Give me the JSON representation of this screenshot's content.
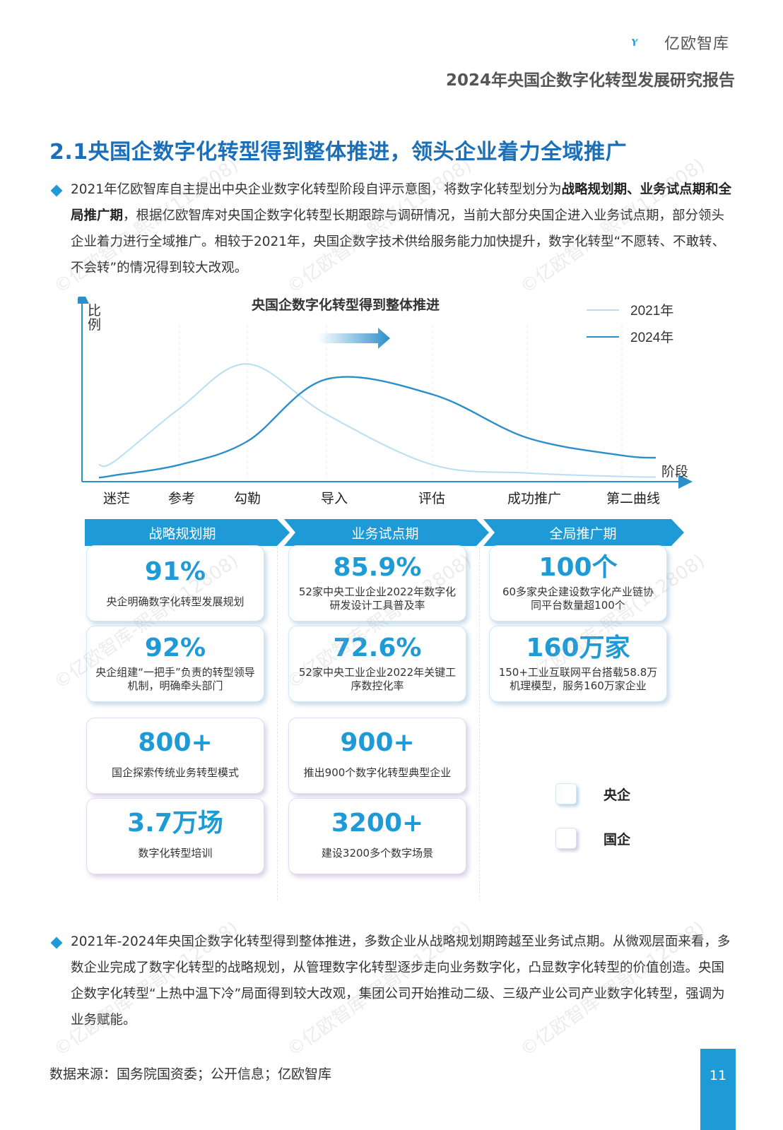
{
  "header": {
    "logo_text": "亿欧智库",
    "report_title": "2024年央国企数字化转型发展研究报告"
  },
  "section": {
    "title": "2.1央国企数字化转型得到整体推进，领头企业着力全域推广"
  },
  "intro": {
    "text_a": "2021年亿欧智库自主提出中央企业数字化转型阶段自评示意图，将数字化转型划分为",
    "bold": "战略规划期、业务试点期和全局推广期",
    "text_b": "，根据亿欧智库对央国企数字化转型长期跟踪与调研情况，当前大部分央国企进入业务试点期，部分领头企业着力进行全域推广。相较于2021年，央国企数字技术供给服务能力加快提升，数字化转型“不愿转、不敢转、不会转”的情况得到较大改观。"
  },
  "chart_data": {
    "type": "line",
    "title": "央国企数字化转型得到整体推进",
    "ylabel": "比例",
    "xlabel": "阶段",
    "categories": [
      "迷茫",
      "参考",
      "勾勒",
      "导入",
      "评估",
      "成功推广",
      "第二曲线"
    ],
    "series": [
      {
        "name": "2021年",
        "color": "#b7def2",
        "values": [
          0.15,
          0.6,
          0.98,
          0.55,
          0.12,
          0.05,
          0.02
        ]
      },
      {
        "name": "2024年",
        "color": "#2c8fc9",
        "values": [
          0.03,
          0.12,
          0.32,
          0.85,
          0.72,
          0.35,
          0.2
        ]
      }
    ],
    "legend": "top-right",
    "grid": false
  },
  "phases": [
    "战略规划期",
    "业务试点期",
    "全局推广期"
  ],
  "stats": {
    "s1": {
      "num": "91%",
      "desc": "央企明确数字化转型发展规划"
    },
    "s2": {
      "num": "92%",
      "desc": "央企组建“一把手”负责的转型领导机制，明确牵头部门"
    },
    "s3": {
      "num": "800+",
      "desc": "国企探索传统业务转型模式"
    },
    "s4": {
      "num": "3.7万场",
      "desc": "数字化转型培训"
    },
    "s5": {
      "num": "85.9%",
      "desc": "52家中央工业企业2022年数字化研发设计工具普及率"
    },
    "s6": {
      "num": "72.6%",
      "desc": "52家中央工业企业2022年关键工序数控化率"
    },
    "s7": {
      "num": "900+",
      "desc": "推出900个数字化转型典型企业"
    },
    "s8": {
      "num": "3200+",
      "desc": "建设3200多个数字场景"
    },
    "s9": {
      "num": "100个",
      "desc": "60多家央企建设数字化产业链协同平台数量超100个"
    },
    "s10": {
      "num": "160万家",
      "desc": "150+工业互联网平台搭载58.8万机理模型，服务160万家企业"
    }
  },
  "legend": {
    "soe": "央企",
    "state": "国企"
  },
  "conclusion": {
    "text": "2021年-2024年央国企数字化转型得到整体推进，多数企业从战略规划期跨越至业务试点期。从微观层面来看，多数企业完成了数字化转型的战略规划，从管理数字化转型逐步走向业务数字化，凸显数字化转型的价值创造。央国企数字化转型“上热中温下冷”局面得到较大改观，集团公司开始推动二级、三级产业公司产业数字化转型，强调为业务赋能。"
  },
  "footer": {
    "source": "数据来源：国务院国资委；公开信息；亿欧智库",
    "page": "11"
  },
  "watermark": "©亿欧智库-熙哥(112808)",
  "colors": {
    "accent": "#1e9bd7",
    "title": "#1a6fb8"
  }
}
